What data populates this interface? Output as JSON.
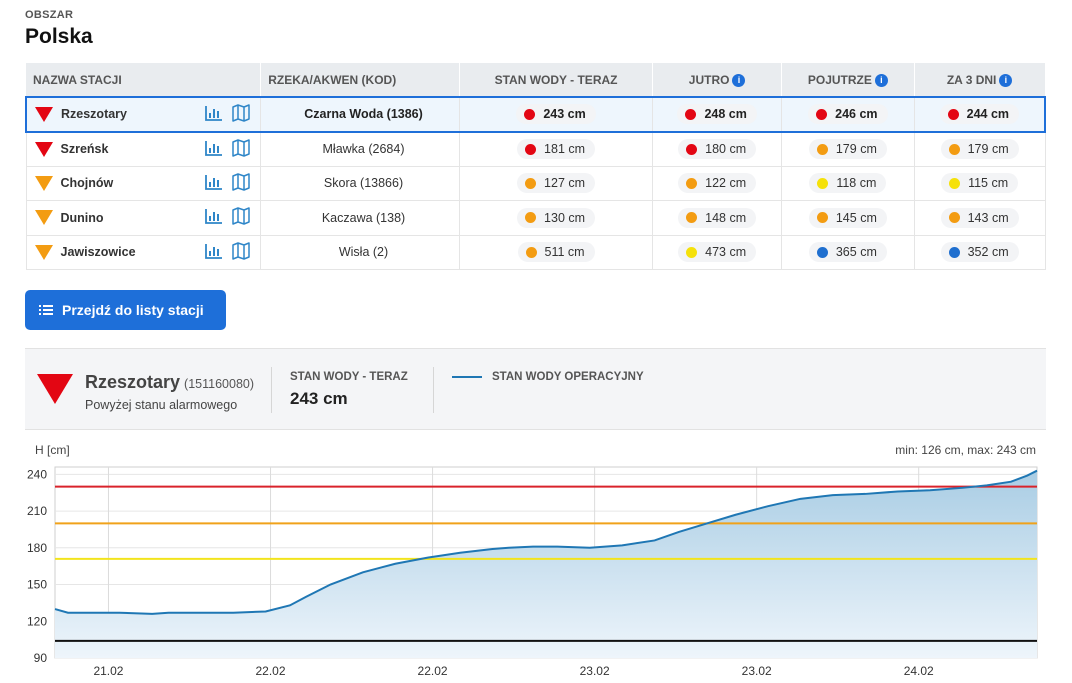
{
  "area": {
    "label": "OBSZAR",
    "value": "Polska"
  },
  "table": {
    "headers": {
      "station": "NAZWA STACJI",
      "river": "RZEKA/AKWEN (KOD)",
      "now": "STAN WODY - TERAZ",
      "tomorrow": "JUTRO",
      "day_after": "POJUTRZE",
      "in_3_days": "ZA 3 DNI"
    },
    "rows": [
      {
        "name": "Rzeszotary",
        "icon": "red",
        "river": "Czarna Woda (1386)",
        "values": [
          {
            "text": "243 cm",
            "color": "#e30613"
          },
          {
            "text": "248 cm",
            "color": "#e30613"
          },
          {
            "text": "246 cm",
            "color": "#e30613"
          },
          {
            "text": "244 cm",
            "color": "#e30613"
          }
        ]
      },
      {
        "name": "Szreńsk",
        "icon": "red",
        "river": "Mławka (2684)",
        "values": [
          {
            "text": "181 cm",
            "color": "#e30613"
          },
          {
            "text": "180 cm",
            "color": "#e30613"
          },
          {
            "text": "179 cm",
            "color": "#f39c12"
          },
          {
            "text": "179 cm",
            "color": "#f39c12"
          }
        ]
      },
      {
        "name": "Chojnów",
        "icon": "orange",
        "river": "Skora (13866)",
        "values": [
          {
            "text": "127 cm",
            "color": "#f39c12"
          },
          {
            "text": "122 cm",
            "color": "#f39c12"
          },
          {
            "text": "118 cm",
            "color": "#f5e10a"
          },
          {
            "text": "115 cm",
            "color": "#f5e10a"
          }
        ]
      },
      {
        "name": "Dunino",
        "icon": "orange",
        "river": "Kaczawa (138)",
        "values": [
          {
            "text": "130 cm",
            "color": "#f39c12"
          },
          {
            "text": "148 cm",
            "color": "#f39c12"
          },
          {
            "text": "145 cm",
            "color": "#f39c12"
          },
          {
            "text": "143 cm",
            "color": "#f39c12"
          }
        ]
      },
      {
        "name": "Jawiszowice",
        "icon": "orange",
        "river": "Wisła (2)",
        "values": [
          {
            "text": "511 cm",
            "color": "#f39c12"
          },
          {
            "text": "473 cm",
            "color": "#f5e10a"
          },
          {
            "text": "365 cm",
            "color": "#1f6fcf"
          },
          {
            "text": "352 cm",
            "color": "#1f6fcf"
          }
        ]
      }
    ]
  },
  "button": {
    "label": "Przejdź do listy stacji"
  },
  "panel": {
    "station": "Rzeszotary",
    "code": "(151160080)",
    "status": "Powyżej stanu alarmowego",
    "now_label": "STAN WODY - TERAZ",
    "now_value": "243 cm",
    "legend": "STAN WODY OPERACYJNY"
  },
  "chart_data": {
    "type": "line",
    "ylabel": "H [cm]",
    "note": "min: 126 cm, max: 243 cm",
    "ylim": [
      90,
      246
    ],
    "yticks": [
      90,
      120,
      150,
      180,
      210,
      240
    ],
    "xlim": [
      0,
      6.06
    ],
    "xticks": [
      {
        "x": 0.33,
        "label": "21.02"
      },
      {
        "x": 1.33,
        "label": "22.02"
      },
      {
        "x": 2.33,
        "label": "22.02"
      },
      {
        "x": 3.33,
        "label": "23.02"
      },
      {
        "x": 4.33,
        "label": "23.02"
      },
      {
        "x": 5.33,
        "label": "24.02"
      }
    ],
    "thresholds": [
      {
        "value": 230,
        "color": "#d9232b"
      },
      {
        "value": 200,
        "color": "#f0a21a"
      },
      {
        "value": 171,
        "color": "#f2e41d"
      },
      {
        "value": 104,
        "color": "#111111"
      }
    ],
    "series": [
      {
        "color": "#1f77b4",
        "x": [
          0,
          0.08,
          0.2,
          0.4,
          0.6,
          0.7,
          0.9,
          1.1,
          1.3,
          1.45,
          1.55,
          1.7,
          1.9,
          2.1,
          2.3,
          2.5,
          2.7,
          2.8,
          2.95,
          3.1,
          3.3,
          3.5,
          3.7,
          3.85,
          4.0,
          4.2,
          4.4,
          4.6,
          4.8,
          5.0,
          5.2,
          5.4,
          5.6,
          5.75,
          5.9,
          6.0,
          6.06
        ],
        "y": [
          130,
          127,
          127,
          127,
          126,
          127,
          127,
          127,
          128,
          133,
          140,
          150,
          160,
          167,
          172,
          176,
          179,
          180,
          181,
          181,
          180,
          182,
          186,
          193,
          199,
          207,
          214,
          220,
          223,
          224,
          226,
          227,
          229,
          231,
          234,
          239,
          243
        ]
      }
    ]
  }
}
